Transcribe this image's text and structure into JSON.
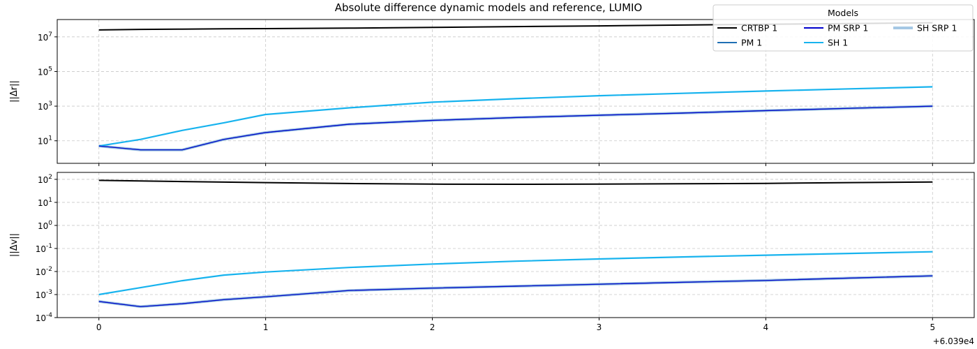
{
  "title": "Absolute difference dynamic models and reference, LUMIO",
  "legend": {
    "title": "Models",
    "entries": [
      {
        "name": "CRTBP 1",
        "color": "#000000"
      },
      {
        "name": "PM 1",
        "color": "#1f6fb4"
      },
      {
        "name": "PM SRP 1",
        "color": "#0000cc"
      },
      {
        "name": "SH 1",
        "color": "#17b3ee"
      },
      {
        "name": "SH SRP 1",
        "color": "#a5c8e4"
      }
    ]
  },
  "x_offset_label": "+6.039e4",
  "chart_data": [
    {
      "type": "line",
      "ylabel": "||Δr||",
      "yscale": "log",
      "ylim": [
        0.5,
        100000000
      ],
      "xlim": [
        -0.25,
        5.25
      ],
      "x_ticks": [
        "0",
        "1",
        "2",
        "3",
        "4",
        "5"
      ],
      "y_ticks": [
        {
          "v": 10,
          "label": "10^1"
        },
        {
          "v": 1000,
          "label": "10^3"
        },
        {
          "v": 100000,
          "label": "10^5"
        },
        {
          "v": 10000000,
          "label": "10^7"
        }
      ],
      "grid": true,
      "x": [
        0,
        0.25,
        0.5,
        0.75,
        1,
        1.5,
        2,
        2.5,
        3,
        3.5,
        4,
        4.5,
        5
      ],
      "series": [
        {
          "name": "CRTBP 1",
          "values": [
            25000000,
            27000000,
            28000000,
            29000000,
            30000000,
            32000000,
            35000000,
            39000000,
            43000000,
            48000000,
            53000000,
            59000000,
            65000000
          ]
        },
        {
          "name": "PM 1",
          "values": [
            5,
            3,
            3,
            12,
            30,
            90,
            150,
            220,
            300,
            400,
            550,
            750,
            1000
          ]
        },
        {
          "name": "PM SRP 1",
          "values": [
            5,
            3,
            3,
            12,
            30,
            90,
            150,
            220,
            300,
            400,
            550,
            750,
            1000
          ]
        },
        {
          "name": "SH 1",
          "values": [
            5,
            12,
            40,
            110,
            330,
            800,
            1700,
            2700,
            4000,
            5500,
            7500,
            10000,
            13000
          ]
        },
        {
          "name": "SH SRP 1",
          "values": [
            5,
            3,
            3,
            12,
            30,
            90,
            150,
            220,
            300,
            400,
            550,
            750,
            1000
          ]
        }
      ]
    },
    {
      "type": "line",
      "ylabel": "||Δv||",
      "yscale": "log",
      "ylim": [
        0.0001,
        200
      ],
      "xlim": [
        -0.25,
        5.25
      ],
      "x_ticks": [
        "0",
        "1",
        "2",
        "3",
        "4",
        "5"
      ],
      "y_ticks": [
        {
          "v": 0.0001,
          "label": "10^-4"
        },
        {
          "v": 0.001,
          "label": "10^-3"
        },
        {
          "v": 0.01,
          "label": "10^-2"
        },
        {
          "v": 0.1,
          "label": "10^-1"
        },
        {
          "v": 1,
          "label": "10^0"
        },
        {
          "v": 10,
          "label": "10^1"
        },
        {
          "v": 100,
          "label": "10^2"
        }
      ],
      "grid": true,
      "x": [
        0,
        0.25,
        0.5,
        0.75,
        1,
        1.5,
        2,
        2.5,
        3,
        3.5,
        4,
        4.5,
        5
      ],
      "series": [
        {
          "name": "CRTBP 1",
          "values": [
            90,
            85,
            80,
            76,
            72,
            66,
            62,
            61,
            62,
            64,
            67,
            72,
            77
          ]
        },
        {
          "name": "PM 1",
          "values": [
            0.0005,
            0.0003,
            0.0004,
            0.0006,
            0.0008,
            0.0015,
            0.0019,
            0.0023,
            0.0028,
            0.0034,
            0.0041,
            0.0052,
            0.0065
          ]
        },
        {
          "name": "PM SRP 1",
          "values": [
            0.0005,
            0.0003,
            0.0004,
            0.0006,
            0.0008,
            0.0015,
            0.0019,
            0.0023,
            0.0028,
            0.0034,
            0.0041,
            0.0052,
            0.0065
          ]
        },
        {
          "name": "SH 1",
          "values": [
            0.001,
            0.002,
            0.004,
            0.007,
            0.0095,
            0.015,
            0.021,
            0.028,
            0.035,
            0.043,
            0.051,
            0.061,
            0.072
          ]
        },
        {
          "name": "SH SRP 1",
          "values": [
            0.0005,
            0.0003,
            0.0004,
            0.0006,
            0.0008,
            0.0015,
            0.0019,
            0.0023,
            0.0028,
            0.0034,
            0.0041,
            0.0052,
            0.0065
          ]
        }
      ]
    }
  ]
}
